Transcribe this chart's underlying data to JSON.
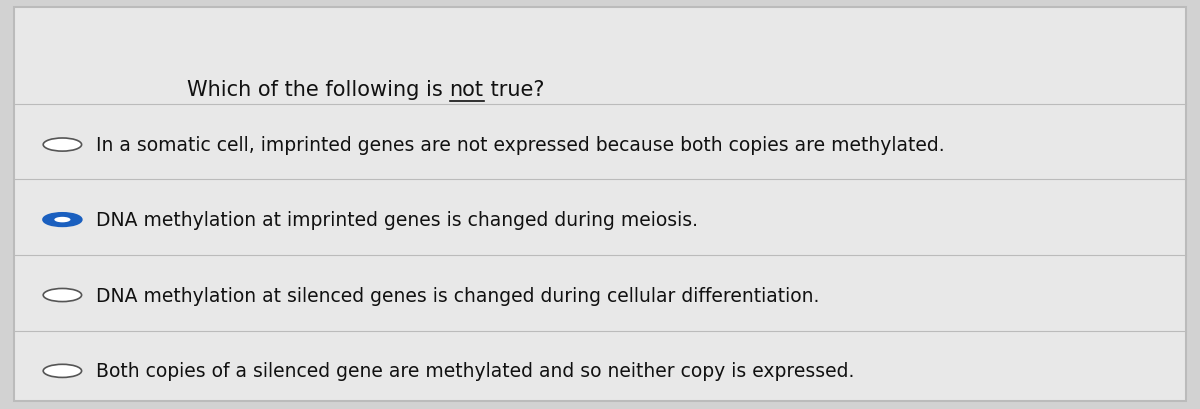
{
  "title_plain": "Which of the following is ",
  "title_not": "not",
  "title_end": " true?",
  "bg_color": "#d2d2d2",
  "panel_color": "#e8e8e8",
  "border_color": "#bbbbbb",
  "text_color": "#111111",
  "options": [
    {
      "text": "In a somatic cell, imprinted genes are not expressed because both copies are methylated.",
      "selected": false
    },
    {
      "text": "DNA methylation at imprinted genes is changed during meiosis.",
      "selected": true
    },
    {
      "text": "DNA methylation at silenced genes is changed during cellular differentiation.",
      "selected": false
    },
    {
      "text": "Both copies of a silenced gene are methylated and so neither copy is expressed.",
      "selected": false
    }
  ],
  "radio_unselected_color": "#ffffff",
  "radio_selected_fill": "#1a5fbf",
  "radio_selected_ring": "#1a5fbf",
  "radio_unselected_ring": "#555555",
  "figwidth": 12.0,
  "figheight": 4.1,
  "dpi": 100
}
